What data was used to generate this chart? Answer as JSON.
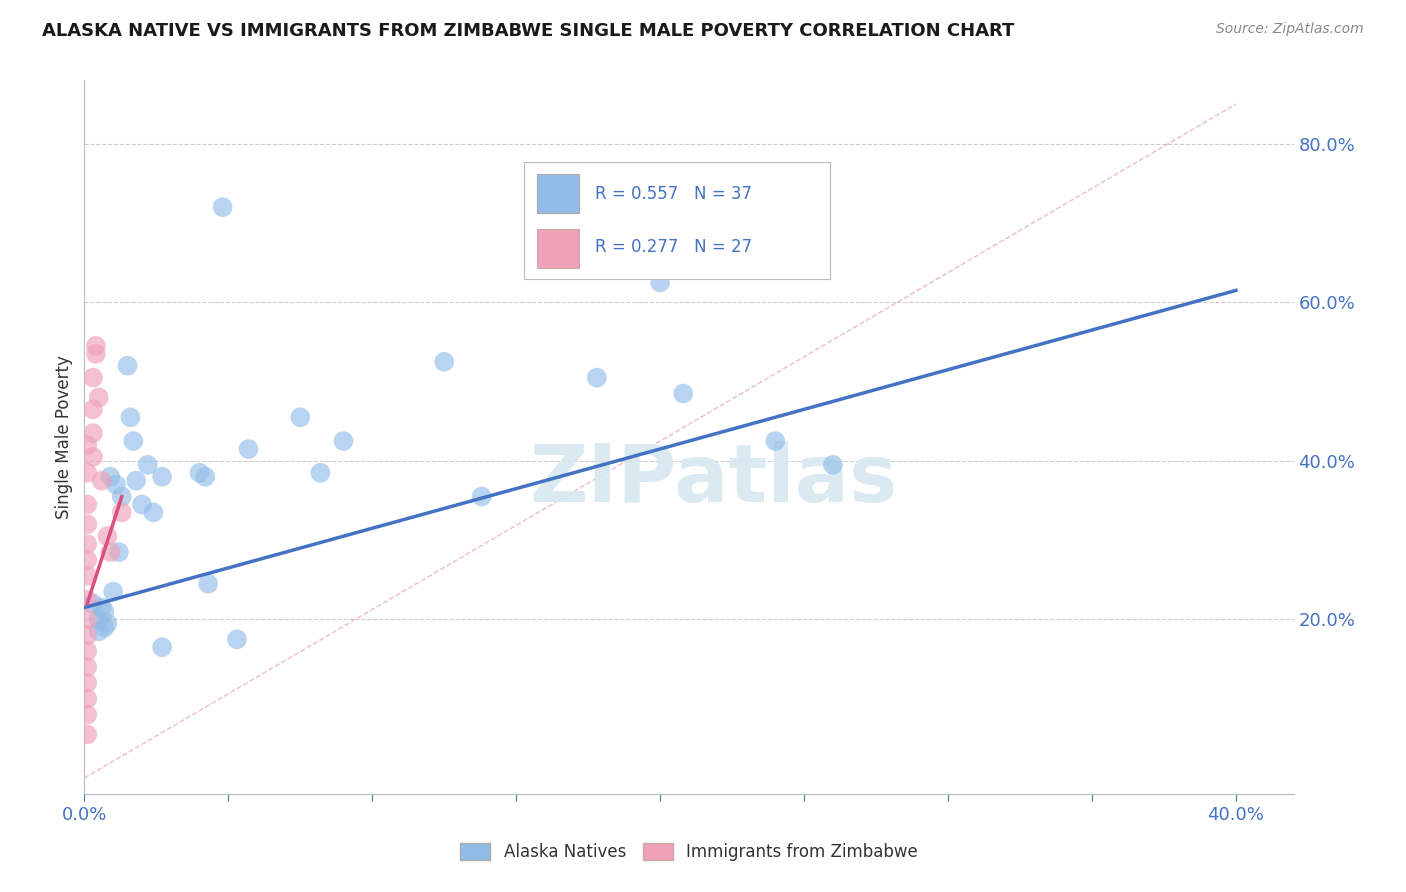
{
  "title": "ALASKA NATIVE VS IMMIGRANTS FROM ZIMBABWE SINGLE MALE POVERTY CORRELATION CHART",
  "source": "Source: ZipAtlas.com",
  "ylabel": "Single Male Poverty",
  "xlim": [
    0.0,
    0.42
  ],
  "ylim": [
    -0.02,
    0.88
  ],
  "yticks": [
    0.2,
    0.4,
    0.6,
    0.8
  ],
  "blue_R": 0.557,
  "blue_N": 37,
  "pink_R": 0.277,
  "pink_N": 27,
  "blue_scatter": [
    [
      0.003,
      0.22
    ],
    [
      0.005,
      0.2
    ],
    [
      0.005,
      0.185
    ],
    [
      0.006,
      0.215
    ],
    [
      0.007,
      0.19
    ],
    [
      0.007,
      0.21
    ],
    [
      0.008,
      0.195
    ],
    [
      0.009,
      0.38
    ],
    [
      0.01,
      0.235
    ],
    [
      0.011,
      0.37
    ],
    [
      0.012,
      0.285
    ],
    [
      0.013,
      0.355
    ],
    [
      0.015,
      0.52
    ],
    [
      0.016,
      0.455
    ],
    [
      0.017,
      0.425
    ],
    [
      0.018,
      0.375
    ],
    [
      0.02,
      0.345
    ],
    [
      0.022,
      0.395
    ],
    [
      0.024,
      0.335
    ],
    [
      0.027,
      0.38
    ],
    [
      0.027,
      0.165
    ],
    [
      0.04,
      0.385
    ],
    [
      0.042,
      0.38
    ],
    [
      0.043,
      0.245
    ],
    [
      0.048,
      0.72
    ],
    [
      0.053,
      0.175
    ],
    [
      0.057,
      0.415
    ],
    [
      0.075,
      0.455
    ],
    [
      0.082,
      0.385
    ],
    [
      0.09,
      0.425
    ],
    [
      0.125,
      0.525
    ],
    [
      0.138,
      0.355
    ],
    [
      0.178,
      0.505
    ],
    [
      0.2,
      0.625
    ],
    [
      0.208,
      0.485
    ],
    [
      0.24,
      0.425
    ],
    [
      0.26,
      0.395
    ]
  ],
  "pink_scatter": [
    [
      0.001,
      0.42
    ],
    [
      0.001,
      0.385
    ],
    [
      0.001,
      0.345
    ],
    [
      0.001,
      0.32
    ],
    [
      0.001,
      0.295
    ],
    [
      0.001,
      0.275
    ],
    [
      0.001,
      0.255
    ],
    [
      0.001,
      0.225
    ],
    [
      0.001,
      0.2
    ],
    [
      0.001,
      0.18
    ],
    [
      0.001,
      0.16
    ],
    [
      0.001,
      0.14
    ],
    [
      0.001,
      0.12
    ],
    [
      0.001,
      0.1
    ],
    [
      0.001,
      0.08
    ],
    [
      0.001,
      0.055
    ],
    [
      0.003,
      0.505
    ],
    [
      0.003,
      0.465
    ],
    [
      0.003,
      0.435
    ],
    [
      0.003,
      0.405
    ],
    [
      0.004,
      0.545
    ],
    [
      0.004,
      0.535
    ],
    [
      0.005,
      0.48
    ],
    [
      0.006,
      0.375
    ],
    [
      0.008,
      0.305
    ],
    [
      0.009,
      0.285
    ],
    [
      0.013,
      0.335
    ]
  ],
  "blue_line_x": [
    0.0,
    0.4
  ],
  "blue_line_y": [
    0.215,
    0.615
  ],
  "pink_line_x": [
    0.001,
    0.013
  ],
  "pink_line_y": [
    0.22,
    0.355
  ],
  "diag_line_x": [
    0.0,
    0.4
  ],
  "diag_line_y": [
    0.0,
    0.85
  ],
  "blue_color": "#92BDE8",
  "pink_color": "#F0A0B8",
  "blue_line_color": "#4472C4",
  "pink_line_color": "#D95080",
  "diag_line_color": "#E8A0B0",
  "grid_color": "#CCCCCC",
  "watermark_text": "ZIPatlas",
  "watermark_color": "#D8E8F0",
  "background_color": "#FFFFFF",
  "legend_label_blue": "Alaska Natives",
  "legend_label_pink": "Immigrants from Zimbabwe"
}
